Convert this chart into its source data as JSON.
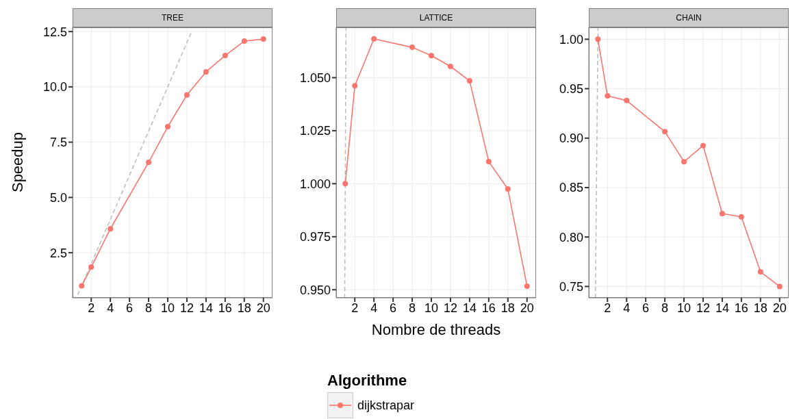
{
  "chart_data": [
    {
      "type": "line",
      "title": "TREE",
      "ylabel": "Speedup",
      "x": [
        1,
        2,
        4,
        8,
        10,
        12,
        14,
        16,
        18,
        20
      ],
      "xlim": [
        0.05,
        20.95
      ],
      "ylim": [
        0.46,
        12.69
      ],
      "xticks": [
        2,
        4,
        6,
        8,
        10,
        12,
        14,
        16,
        18,
        20
      ],
      "yticks": [
        {
          "value": 2.5,
          "label": "2.5"
        },
        {
          "value": 5,
          "label": "5.0"
        },
        {
          "value": 7.5,
          "label": "7.5"
        },
        {
          "value": 10,
          "label": "10.0"
        },
        {
          "value": 12.5,
          "label": "12.5"
        }
      ],
      "grid": true,
      "series": [
        {
          "color": "#bebebe",
          "line_style": "dashed",
          "marker": "none",
          "x": [
            0.6,
            12.5
          ],
          "values": [
            0.6,
            12.5
          ]
        },
        {
          "color": "#f8766d",
          "marker": "circle",
          "values": [
            1.0,
            1.85,
            3.58,
            6.59,
            8.2,
            9.63,
            10.68,
            11.42,
            12.07,
            12.16
          ]
        }
      ]
    },
    {
      "type": "line",
      "title": "LATTICE",
      "xlabel": "Nombre de threads",
      "legend_title": "Algorithme",
      "legend": "bottom",
      "x": [
        1,
        2,
        4,
        8,
        10,
        12,
        14,
        16,
        18,
        20
      ],
      "xlim": [
        0.05,
        20.95
      ],
      "ylim": [
        0.9462,
        1.0737
      ],
      "xticks": [
        2,
        4,
        6,
        8,
        10,
        12,
        14,
        16,
        18,
        20
      ],
      "yticks": [
        {
          "value": 0.95,
          "label": "0.950"
        },
        {
          "value": 0.975,
          "label": "0.975"
        },
        {
          "value": 1,
          "label": "1.000"
        },
        {
          "value": 1.025,
          "label": "1.025"
        },
        {
          "value": 1.05,
          "label": "1.050"
        }
      ],
      "grid": true,
      "series": [
        {
          "color": "#bebebe",
          "line_style": "dashed",
          "marker": "none",
          "x": [
            0.9462,
            1.0737
          ],
          "values": [
            0.9462,
            1.0737
          ]
        },
        {
          "name": "dijkstrapar",
          "color": "#f8766d",
          "marker": "circle",
          "values": [
            1.0,
            1.0462,
            1.0683,
            1.0643,
            1.0604,
            1.0553,
            1.0485,
            1.0104,
            0.9975,
            0.9517
          ]
        }
      ]
    },
    {
      "type": "line",
      "title": "CHAIN",
      "x": [
        1,
        2,
        4,
        8,
        10,
        12,
        14,
        16,
        18,
        20
      ],
      "xlim": [
        0.05,
        20.95
      ],
      "ylim": [
        0.7385,
        1.012
      ],
      "xticks": [
        2,
        4,
        6,
        8,
        10,
        12,
        14,
        16,
        18,
        20
      ],
      "yticks": [
        {
          "value": 0.75,
          "label": "0.75"
        },
        {
          "value": 0.8,
          "label": "0.80"
        },
        {
          "value": 0.85,
          "label": "0.85"
        },
        {
          "value": 0.9,
          "label": "0.90"
        },
        {
          "value": 0.95,
          "label": "0.95"
        },
        {
          "value": 1,
          "label": "1.00"
        }
      ],
      "grid": true,
      "series": [
        {
          "color": "#bebebe",
          "line_style": "dashed",
          "marker": "none",
          "x": [
            0.7385,
            1.012
          ],
          "values": [
            0.7385,
            1.012
          ]
        },
        {
          "color": "#f8766d",
          "marker": "circle",
          "values": [
            1.0,
            0.9427,
            0.938,
            0.9065,
            0.8762,
            0.8924,
            0.8237,
            0.8204,
            0.7648,
            0.75
          ]
        }
      ]
    }
  ]
}
